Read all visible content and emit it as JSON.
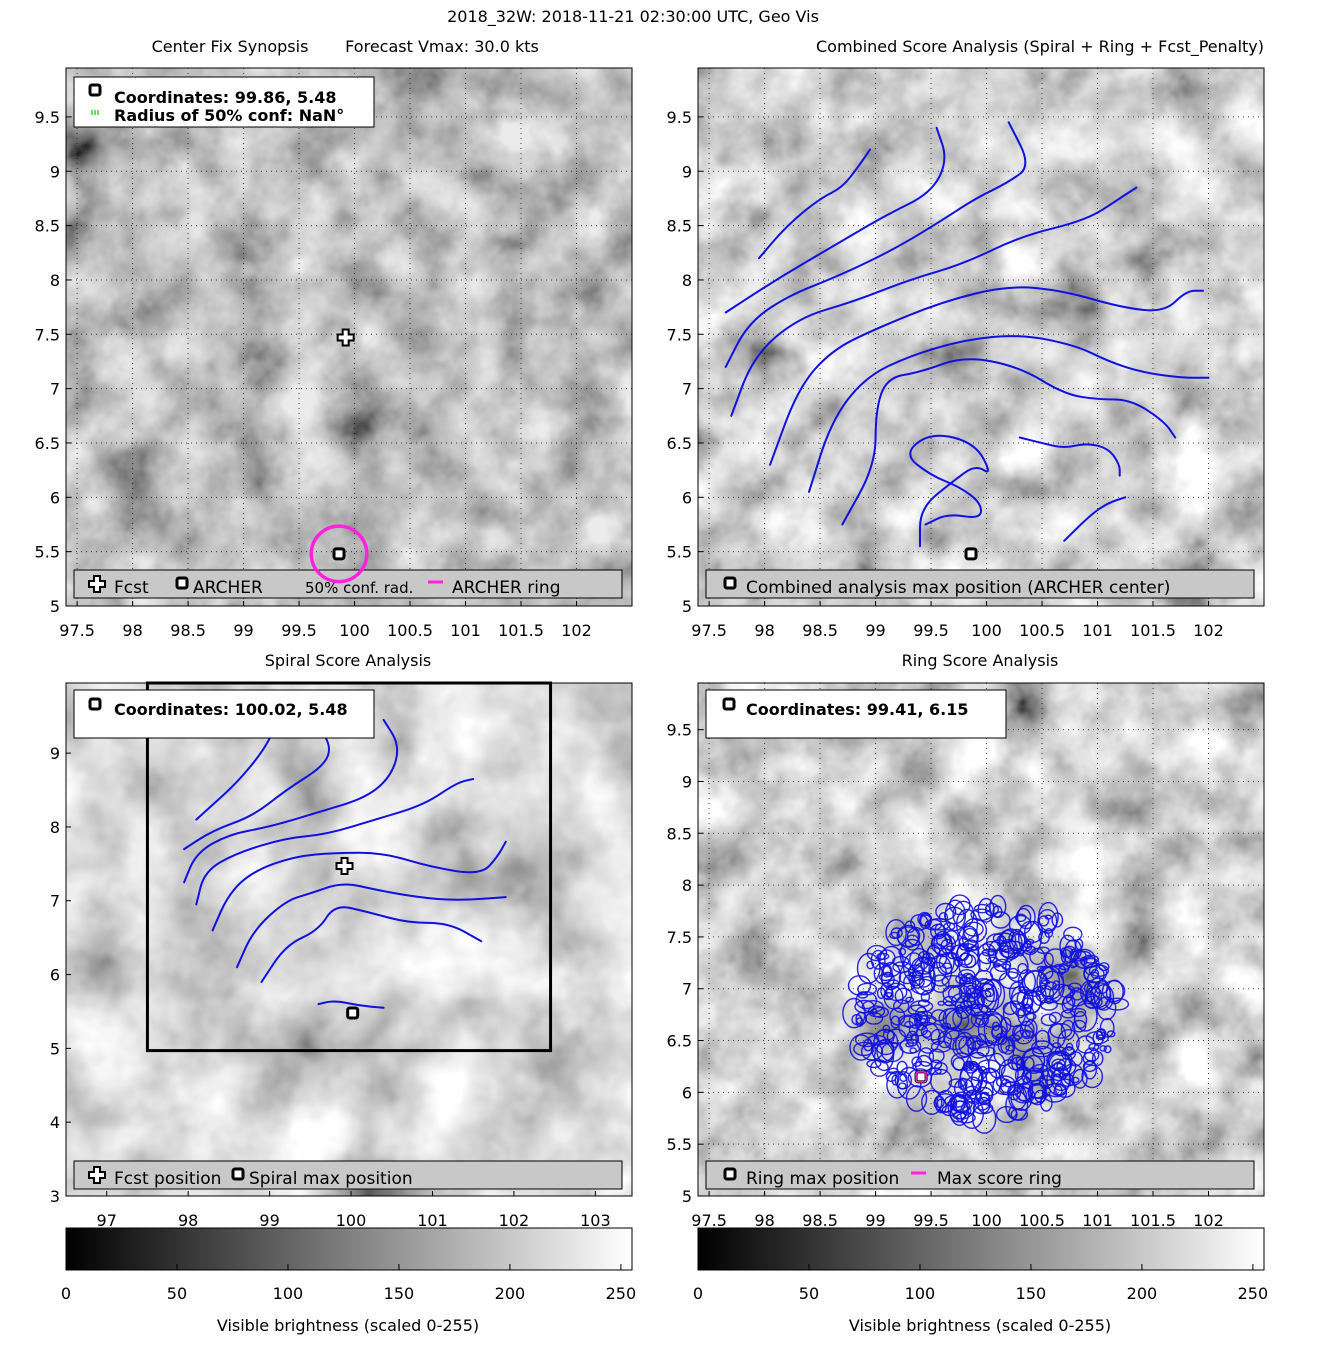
{
  "figure": {
    "title": "2018_32W: 2018-11-21 02:30:00 UTC, Geo Vis"
  },
  "colors": {
    "contour": "#1010e0",
    "ring": "#ff22dd",
    "conf_legend": "#00cc00",
    "grid": "#111111",
    "legend_bg": "#c8c8c8"
  },
  "chart_data": [
    {
      "id": "synopsis",
      "type": "scatter",
      "title_left": "Center Fix Synopsis",
      "title_right": "Forecast Vmax: 30.0 kts",
      "xlim": [
        97.4,
        102.5
      ],
      "ylim": [
        5.0,
        9.95
      ],
      "xticks": [
        97.5,
        98,
        98.5,
        99,
        99.5,
        100,
        100.5,
        101,
        101.5,
        102
      ],
      "yticks": [
        5,
        5.5,
        6,
        6.5,
        7,
        7.5,
        8,
        8.5,
        9,
        9.5
      ],
      "grid": true,
      "legend_position": "bottom",
      "info_box": {
        "coordinates": "Coordinates: 99.86, 5.48",
        "radius": "Radius of 50% conf: NaN°"
      },
      "legend": [
        "Fcst",
        "ARCHER",
        "50% conf. rad.",
        "ARCHER ring"
      ],
      "points": [
        {
          "series": "Fcst",
          "x": 99.92,
          "y": 7.47
        },
        {
          "series": "ARCHER",
          "x": 99.86,
          "y": 5.48
        }
      ],
      "ring": {
        "x": 99.86,
        "y": 5.48,
        "radius_deg": 0.25
      }
    },
    {
      "id": "combined",
      "type": "contour",
      "title": "Combined Score Analysis (Spiral + Ring + Fcst_Penalty)",
      "xlim": [
        97.4,
        102.5
      ],
      "ylim": [
        5.0,
        9.95
      ],
      "xticks": [
        97.5,
        98,
        98.5,
        99,
        99.5,
        100,
        100.5,
        101,
        101.5,
        102
      ],
      "yticks": [
        5,
        5.5,
        6,
        6.5,
        7,
        7.5,
        8,
        8.5,
        9,
        9.5
      ],
      "grid": true,
      "legend_position": "bottom",
      "legend": [
        "Combined analysis max position (ARCHER center)"
      ],
      "points": [
        {
          "series": "max",
          "x": 99.86,
          "y": 5.48
        }
      ],
      "curves": [
        [
          [
            97.95,
            8.2
          ],
          [
            98.2,
            8.5
          ],
          [
            98.5,
            8.75
          ],
          [
            98.7,
            8.85
          ],
          [
            98.85,
            9.05
          ],
          [
            98.95,
            9.2
          ]
        ],
        [
          [
            97.65,
            7.7
          ],
          [
            98.1,
            8.0
          ],
          [
            98.6,
            8.3
          ],
          [
            99.1,
            8.6
          ],
          [
            99.5,
            8.8
          ],
          [
            99.65,
            9.1
          ],
          [
            99.55,
            9.4
          ]
        ],
        [
          [
            97.65,
            7.2
          ],
          [
            97.85,
            7.6
          ],
          [
            98.2,
            7.85
          ],
          [
            98.7,
            8.05
          ],
          [
            99.2,
            8.3
          ],
          [
            99.6,
            8.55
          ],
          [
            99.9,
            8.75
          ],
          [
            100.2,
            8.9
          ],
          [
            100.4,
            9.05
          ],
          [
            100.2,
            9.45
          ]
        ],
        [
          [
            97.7,
            6.75
          ],
          [
            97.9,
            7.3
          ],
          [
            98.3,
            7.65
          ],
          [
            98.8,
            7.8
          ],
          [
            99.3,
            8.0
          ],
          [
            99.8,
            8.15
          ],
          [
            100.3,
            8.4
          ],
          [
            100.9,
            8.55
          ],
          [
            101.2,
            8.75
          ],
          [
            101.35,
            8.85
          ]
        ],
        [
          [
            98.05,
            6.3
          ],
          [
            98.3,
            7.0
          ],
          [
            98.6,
            7.35
          ],
          [
            99.0,
            7.55
          ],
          [
            99.6,
            7.8
          ],
          [
            100.2,
            7.95
          ],
          [
            100.7,
            7.9
          ],
          [
            101.2,
            7.75
          ],
          [
            101.6,
            7.7
          ],
          [
            101.8,
            7.9
          ],
          [
            101.95,
            7.9
          ]
        ],
        [
          [
            98.4,
            6.05
          ],
          [
            98.6,
            6.7
          ],
          [
            98.9,
            7.1
          ],
          [
            99.3,
            7.3
          ],
          [
            99.8,
            7.45
          ],
          [
            100.3,
            7.5
          ],
          [
            100.8,
            7.4
          ],
          [
            101.1,
            7.25
          ],
          [
            101.4,
            7.15
          ],
          [
            101.75,
            7.1
          ],
          [
            102.0,
            7.1
          ]
        ],
        [
          [
            98.7,
            5.75
          ],
          [
            99.0,
            6.3
          ],
          [
            99.0,
            6.8
          ],
          [
            99.1,
            7.1
          ],
          [
            99.4,
            7.15
          ],
          [
            99.8,
            7.3
          ],
          [
            100.3,
            7.2
          ],
          [
            100.7,
            6.95
          ],
          [
            101.0,
            6.9
          ],
          [
            101.3,
            6.9
          ],
          [
            101.6,
            6.7
          ],
          [
            101.7,
            6.55
          ]
        ],
        [
          [
            99.4,
            5.55
          ],
          [
            99.4,
            5.9
          ],
          [
            99.7,
            6.15
          ],
          [
            99.9,
            6.3
          ],
          [
            100.05,
            6.2
          ],
          [
            99.9,
            6.5
          ],
          [
            99.5,
            6.6
          ],
          [
            99.25,
            6.4
          ],
          [
            99.5,
            6.2
          ],
          [
            99.75,
            6.1
          ],
          [
            99.95,
            5.95
          ],
          [
            99.95,
            5.8
          ],
          [
            99.65,
            5.85
          ],
          [
            99.45,
            5.75
          ]
        ],
        [
          [
            100.3,
            6.55
          ],
          [
            100.5,
            6.5
          ],
          [
            100.7,
            6.45
          ],
          [
            100.9,
            6.5
          ],
          [
            101.1,
            6.45
          ],
          [
            101.2,
            6.3
          ],
          [
            101.2,
            6.2
          ]
        ],
        [
          [
            100.7,
            5.6
          ],
          [
            100.95,
            5.85
          ],
          [
            101.1,
            5.95
          ],
          [
            101.25,
            6.0
          ]
        ]
      ],
      "xlabel": "",
      "ylabel": ""
    },
    {
      "id": "spiral",
      "type": "contour",
      "title": "Spiral Score Analysis",
      "xlim": [
        96.5,
        103.45
      ],
      "ylim": [
        3.0,
        9.95
      ],
      "xticks": [
        97,
        98,
        99,
        100,
        101,
        102,
        103
      ],
      "yticks": [
        3,
        4,
        5,
        6,
        7,
        8,
        9
      ],
      "grid": false,
      "legend_position": "bottom",
      "info_box": {
        "coordinates": "Coordinates: 100.02, 5.48"
      },
      "legend": [
        "Fcst position",
        "Spiral max position"
      ],
      "points": [
        {
          "series": "Fcst",
          "x": 99.92,
          "y": 7.47
        },
        {
          "series": "Spiral max",
          "x": 100.02,
          "y": 5.48
        }
      ],
      "box": {
        "x1": 97.5,
        "x2": 102.45,
        "y1": 4.97,
        "y2": 9.95
      },
      "curves": [
        [
          [
            98.1,
            8.1
          ],
          [
            98.3,
            8.3
          ],
          [
            98.6,
            8.6
          ],
          [
            98.9,
            9.0
          ],
          [
            99.05,
            9.3
          ]
        ],
        [
          [
            97.95,
            7.7
          ],
          [
            98.3,
            7.95
          ],
          [
            98.8,
            8.15
          ],
          [
            99.2,
            8.5
          ],
          [
            99.7,
            8.85
          ],
          [
            99.75,
            9.15
          ],
          [
            99.5,
            9.45
          ]
        ],
        [
          [
            97.95,
            7.25
          ],
          [
            98.1,
            7.65
          ],
          [
            98.5,
            7.9
          ],
          [
            99.0,
            8.0
          ],
          [
            99.6,
            8.2
          ],
          [
            100.2,
            8.4
          ],
          [
            100.5,
            8.7
          ],
          [
            100.6,
            9.1
          ],
          [
            100.4,
            9.45
          ]
        ],
        [
          [
            98.1,
            6.95
          ],
          [
            98.2,
            7.4
          ],
          [
            98.6,
            7.65
          ],
          [
            99.2,
            7.85
          ],
          [
            99.7,
            7.9
          ],
          [
            100.3,
            8.1
          ],
          [
            100.9,
            8.3
          ],
          [
            101.3,
            8.6
          ],
          [
            101.5,
            8.65
          ]
        ],
        [
          [
            98.3,
            6.6
          ],
          [
            98.5,
            7.1
          ],
          [
            98.8,
            7.4
          ],
          [
            99.3,
            7.6
          ],
          [
            99.8,
            7.65
          ],
          [
            100.4,
            7.65
          ],
          [
            101.0,
            7.45
          ],
          [
            101.6,
            7.35
          ],
          [
            101.8,
            7.6
          ],
          [
            101.9,
            7.8
          ]
        ],
        [
          [
            98.6,
            6.1
          ],
          [
            98.8,
            6.6
          ],
          [
            99.2,
            7.0
          ],
          [
            99.5,
            7.1
          ],
          [
            99.9,
            7.25
          ],
          [
            100.3,
            7.15
          ],
          [
            100.8,
            7.05
          ],
          [
            101.3,
            7.0
          ],
          [
            101.9,
            7.05
          ]
        ],
        [
          [
            98.9,
            5.9
          ],
          [
            99.2,
            6.4
          ],
          [
            99.6,
            6.6
          ],
          [
            99.8,
            6.95
          ],
          [
            100.2,
            6.85
          ],
          [
            100.7,
            6.7
          ],
          [
            101.2,
            6.7
          ],
          [
            101.6,
            6.45
          ]
        ],
        [
          [
            99.6,
            5.6
          ],
          [
            99.8,
            5.65
          ],
          [
            100.1,
            5.58
          ],
          [
            100.4,
            5.55
          ]
        ]
      ],
      "colorbar": {
        "label": "Visible brightness (scaled 0-255)",
        "ticks": [
          0,
          50,
          100,
          150,
          200,
          250
        ],
        "range": [
          0,
          255
        ]
      }
    },
    {
      "id": "ring",
      "type": "contour",
      "title": "Ring Score Analysis",
      "xlim": [
        97.4,
        102.5
      ],
      "ylim": [
        5.0,
        9.95
      ],
      "xticks": [
        97.5,
        98,
        98.5,
        99,
        99.5,
        100,
        100.5,
        101,
        101.5,
        102
      ],
      "yticks": [
        5,
        5.5,
        6,
        6.5,
        7,
        7.5,
        8,
        8.5,
        9,
        9.5
      ],
      "grid": true,
      "legend_position": "bottom",
      "info_box": {
        "coordinates": "Coordinates: 99.41, 6.15"
      },
      "legend": [
        "Ring max position",
        "Max score ring"
      ],
      "points": [
        {
          "series": "Ring max",
          "x": 99.41,
          "y": 6.15
        }
      ],
      "ring_region": {
        "x": 100.0,
        "y": 6.78,
        "radius_deg": 1.2
      },
      "colorbar": {
        "label": "Visible brightness (scaled 0-255)",
        "ticks": [
          0,
          50,
          100,
          150,
          200,
          250
        ],
        "range": [
          0,
          255
        ]
      }
    }
  ]
}
